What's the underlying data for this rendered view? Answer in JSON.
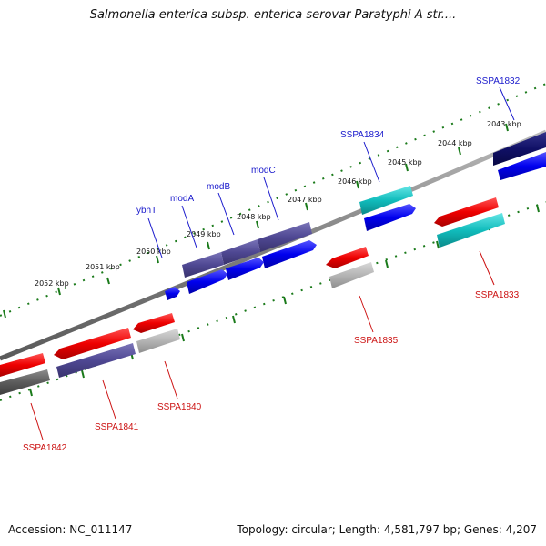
{
  "title": "Salmonella enterica subsp. enterica serovar Paratyphi A str....",
  "footer": {
    "accession": "Accession: NC_011147",
    "summary": "Topology: circular; Length: 4,581,797 bp; Genes: 4,207"
  },
  "colors": {
    "backbone": "#808080",
    "tick": "#1a7a1a",
    "label_forward": "#1a1acc",
    "label_reverse": "#cc1111"
  },
  "scale_labels": [
    "2043 kbp",
    "2044 kbp",
    "2045 kbp",
    "2046 kbp",
    "2047 kbp",
    "2048 kbp",
    "2049 kbp",
    "2050 kbp",
    "2051 kbp",
    "2052 kbp"
  ],
  "forward_labels": [
    "SSPA1832",
    "SSPA1834",
    "modC",
    "modB",
    "modA",
    "ybhT"
  ],
  "reverse_labels": [
    "SSPA1833",
    "SSPA1835",
    "SSPA1840",
    "SSPA1841",
    "SSPA1842"
  ]
}
